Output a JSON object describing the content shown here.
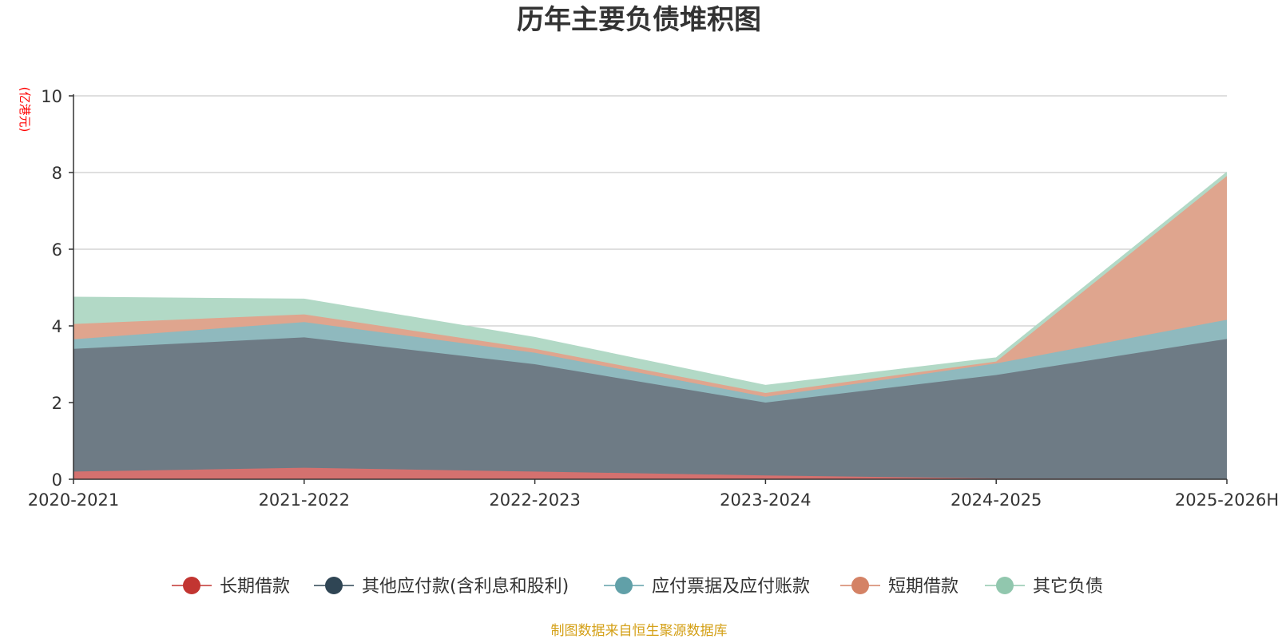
{
  "chart_data": {
    "type": "area",
    "stacked": true,
    "title": "历年主要负债堆积图",
    "ylabel": "(亿港元)",
    "xlabel": "",
    "categories": [
      "2020-2021",
      "2021-2022",
      "2022-2023",
      "2023-2024",
      "2024-2025",
      "2025-2026H"
    ],
    "ylim": [
      0,
      10
    ],
    "yticks": [
      0,
      2,
      4,
      6,
      8,
      10
    ],
    "grid": true,
    "legend_position": "bottom",
    "series": [
      {
        "name": "长期借款",
        "color": "#c23531",
        "fill": "#d4716f",
        "values": [
          0.2,
          0.3,
          0.2,
          0.1,
          0.02,
          0.01
        ]
      },
      {
        "name": "其他应付款(含利息和股利)",
        "color": "#2f4554",
        "fill": "#6e7b85",
        "values": [
          3.2,
          3.4,
          2.8,
          1.9,
          2.7,
          3.65
        ]
      },
      {
        "name": "应付票据及应付账款",
        "color": "#61a0a8",
        "fill": "#8fb9be",
        "values": [
          0.25,
          0.4,
          0.3,
          0.15,
          0.3,
          0.5
        ]
      },
      {
        "name": "短期借款",
        "color": "#d48265",
        "fill": "#dfa58e",
        "values": [
          0.4,
          0.2,
          0.1,
          0.1,
          0.05,
          3.75
        ]
      },
      {
        "name": "其它负债",
        "color": "#91c7ae",
        "fill": "#b2d9c6",
        "values": [
          0.7,
          0.4,
          0.3,
          0.2,
          0.1,
          0.1
        ]
      }
    ]
  },
  "footer": "制图数据来自恒生聚源数据库"
}
